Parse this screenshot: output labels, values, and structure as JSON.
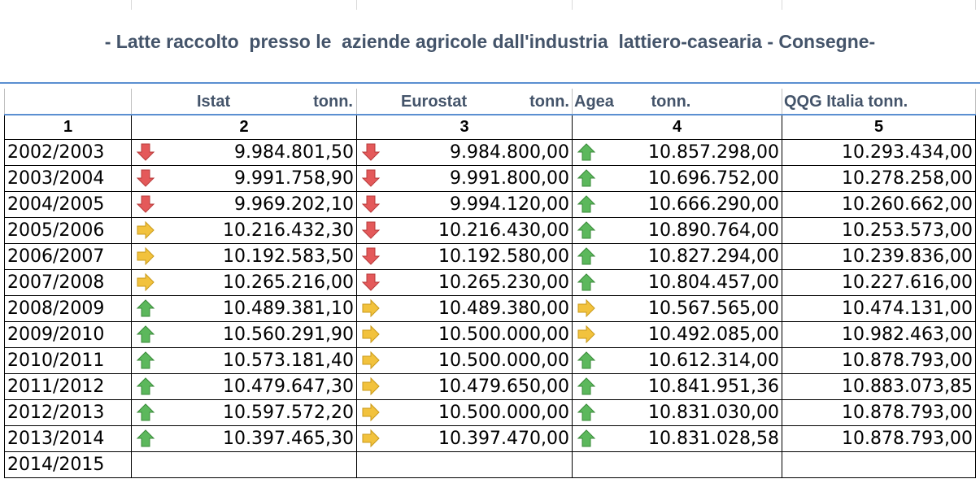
{
  "title": "- Latte raccolto  presso le  aziende agricole dall'industria  lattiero-casearia - Consegne-",
  "header": {
    "istat": [
      "Istat",
      "tonn."
    ],
    "eurostat": [
      "Eurostat",
      "tonn."
    ],
    "agea": [
      "Agea",
      "tonn."
    ],
    "qqg": "QQG Italia tonn."
  },
  "numbers": [
    "1",
    "2",
    "3",
    "4",
    "5"
  ],
  "colors": {
    "title": "#44546a",
    "rule": "#5b8fd1",
    "down": "#e4595a",
    "flat": "#f2c23d",
    "up": "#5cb85c"
  },
  "rows": [
    {
      "year": "2002/2003",
      "istat": "9.984.801,50",
      "istat_trend": "down",
      "eurostat": "9.984.800,00",
      "eurostat_trend": "down",
      "agea": "10.857.298,00",
      "agea_trend": "up",
      "qqg": "10.293.434,00"
    },
    {
      "year": "2003/2004",
      "istat": "9.991.758,90",
      "istat_trend": "down",
      "eurostat": "9.991.800,00",
      "eurostat_trend": "down",
      "agea": "10.696.752,00",
      "agea_trend": "up",
      "qqg": "10.278.258,00"
    },
    {
      "year": "2004/2005",
      "istat": "9.969.202,10",
      "istat_trend": "down",
      "eurostat": "9.994.120,00",
      "eurostat_trend": "down",
      "agea": "10.666.290,00",
      "agea_trend": "up",
      "qqg": "10.260.662,00"
    },
    {
      "year": "2005/2006",
      "istat": "10.216.432,30",
      "istat_trend": "flat",
      "eurostat": "10.216.430,00",
      "eurostat_trend": "down",
      "agea": "10.890.764,00",
      "agea_trend": "up",
      "qqg": "10.253.573,00"
    },
    {
      "year": "2006/2007",
      "istat": "10.192.583,50",
      "istat_trend": "flat",
      "eurostat": "10.192.580,00",
      "eurostat_trend": "down",
      "agea": "10.827.294,00",
      "agea_trend": "up",
      "qqg": "10.239.836,00"
    },
    {
      "year": "2007/2008",
      "istat": "10.265.216,00",
      "istat_trend": "flat",
      "eurostat": "10.265.230,00",
      "eurostat_trend": "down",
      "agea": "10.804.457,00",
      "agea_trend": "up",
      "qqg": "10.227.616,00"
    },
    {
      "year": "2008/2009",
      "istat": "10.489.381,10",
      "istat_trend": "up",
      "eurostat": "10.489.380,00",
      "eurostat_trend": "flat",
      "agea": "10.567.565,00",
      "agea_trend": "flat",
      "qqg": "10.474.131,00"
    },
    {
      "year": "2009/2010",
      "istat": "10.560.291,90",
      "istat_trend": "up",
      "eurostat": "10.500.000,00",
      "eurostat_trend": "flat",
      "agea": "10.492.085,00",
      "agea_trend": "flat",
      "qqg": "10.982.463,00"
    },
    {
      "year": "2010/2011",
      "istat": "10.573.181,40",
      "istat_trend": "up",
      "eurostat": "10.500.000,00",
      "eurostat_trend": "flat",
      "agea": "10.612.314,00",
      "agea_trend": "up",
      "qqg": "10.878.793,00"
    },
    {
      "year": "2011/2012",
      "istat": "10.479.647,30",
      "istat_trend": "up",
      "eurostat": "10.479.650,00",
      "eurostat_trend": "flat",
      "agea": "10.841.951,36",
      "agea_trend": "up",
      "qqg": "10.883.073,85"
    },
    {
      "year": "2012/2013",
      "istat": "10.597.572,20",
      "istat_trend": "up",
      "eurostat": "10.500.000,00",
      "eurostat_trend": "flat",
      "agea": "10.831.030,00",
      "agea_trend": "up",
      "qqg": "10.878.793,00"
    },
    {
      "year": "2013/2014",
      "istat": "10.397.465,30",
      "istat_trend": "up",
      "eurostat": "10.397.470,00",
      "eurostat_trend": "flat",
      "agea": "10.831.028,58",
      "agea_trend": "up",
      "qqg": "10.878.793,00"
    },
    {
      "year": "2014/2015"
    }
  ]
}
